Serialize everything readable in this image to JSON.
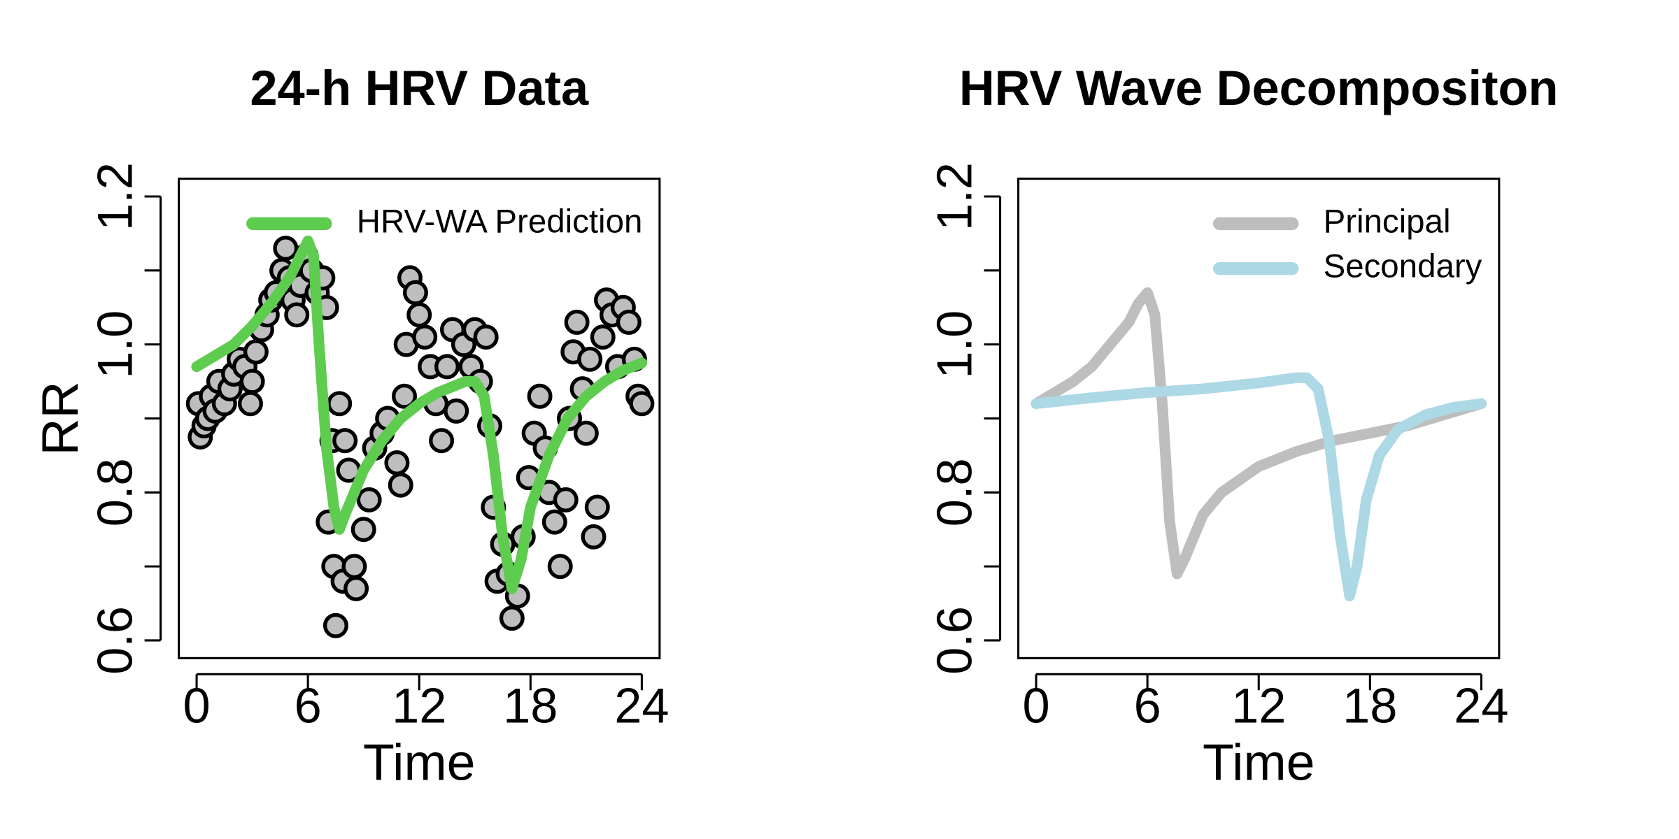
{
  "chart_data": [
    {
      "type": "scatter",
      "title": "24-h HRV Data",
      "xlabel": "Time",
      "ylabel": "RR",
      "xlim": [
        -0.96,
        24.96
      ],
      "ylim": [
        0.576,
        1.224
      ],
      "xticks": [
        0,
        6,
        12,
        18,
        24
      ],
      "yticks": [
        0.6,
        {
          "value": 0.7,
          "label": null
        },
        0.8,
        {
          "value": 0.9,
          "label": null
        },
        {
          "value": 1,
          "label": "1.0"
        },
        {
          "value": 1.1,
          "label": null
        },
        1.2
      ],
      "legend": "topright",
      "points": {
        "color": "#bebebe",
        "x": [
          0.1,
          0.2,
          0.4,
          0.6,
          0.8,
          1.0,
          1.2,
          1.5,
          1.8,
          2.0,
          2.3,
          2.6,
          2.9,
          3.0,
          3.2,
          3.5,
          3.8,
          4.0,
          4.3,
          4.6,
          4.8,
          5.0,
          5.2,
          5.4,
          5.6,
          5.9,
          6.2,
          6.5,
          6.8,
          7.0,
          7.1,
          7.3,
          7.4,
          7.5,
          7.7,
          7.9,
          8.0,
          8.2,
          8.5,
          8.6,
          9.0,
          9.3,
          9.6,
          10.0,
          10.3,
          10.8,
          11.0,
          11.2,
          11.3,
          11.5,
          11.8,
          12.0,
          12.3,
          12.6,
          12.9,
          13.2,
          13.5,
          13.8,
          14.0,
          14.4,
          14.8,
          15.0,
          15.3,
          15.6,
          15.8,
          16.0,
          16.2,
          16.5,
          16.8,
          17.0,
          17.3,
          17.6,
          17.9,
          18.2,
          18.5,
          18.8,
          19.0,
          19.3,
          19.6,
          19.9,
          20.1,
          20.3,
          20.5,
          20.8,
          21.0,
          21.2,
          21.4,
          21.6,
          21.9,
          22.1,
          22.4,
          22.7,
          23.0,
          23.3,
          23.6,
          23.8,
          24.0
        ],
        "values": [
          0.92,
          0.875,
          0.89,
          0.9,
          0.93,
          0.91,
          0.95,
          0.92,
          0.94,
          0.96,
          0.98,
          0.97,
          0.92,
          0.95,
          0.99,
          1.02,
          1.04,
          1.06,
          1.07,
          1.1,
          1.13,
          1.09,
          1.06,
          1.04,
          1.08,
          1.12,
          1.1,
          1.07,
          1.09,
          1.05,
          0.76,
          0.87,
          0.7,
          0.62,
          0.92,
          0.68,
          0.87,
          0.83,
          0.7,
          0.67,
          0.75,
          0.79,
          0.86,
          0.88,
          0.9,
          0.84,
          0.81,
          0.93,
          1.0,
          1.09,
          1.07,
          1.04,
          1.01,
          0.97,
          0.92,
          0.87,
          0.97,
          1.02,
          0.91,
          1.0,
          0.97,
          1.02,
          0.95,
          1.01,
          0.89,
          0.78,
          0.68,
          0.73,
          0.69,
          0.63,
          0.66,
          0.74,
          0.82,
          0.88,
          0.93,
          0.86,
          0.8,
          0.76,
          0.7,
          0.79,
          0.9,
          0.99,
          1.03,
          0.94,
          0.88,
          0.98,
          0.74,
          0.78,
          1.01,
          1.06,
          1.04,
          0.97,
          1.05,
          1.03,
          0.98,
          0.93,
          0.92
        ]
      },
      "series": [
        {
          "name": "HRV-WA Prediction",
          "color": "#5ecc4e",
          "x": [
            0,
            1,
            2,
            3,
            4,
            5,
            5.5,
            6,
            6.3,
            6.6,
            7,
            7.4,
            7.7,
            8,
            9,
            10,
            11,
            12,
            13,
            14,
            14.5,
            15,
            15.5,
            16,
            16.5,
            17,
            17.5,
            18,
            19,
            20,
            21,
            22,
            23,
            24
          ],
          "values": [
            0.97,
            0.985,
            1.0,
            1.025,
            1.055,
            1.09,
            1.115,
            1.14,
            1.12,
            1.0,
            0.86,
            0.78,
            0.75,
            0.77,
            0.83,
            0.87,
            0.9,
            0.92,
            0.935,
            0.945,
            0.95,
            0.95,
            0.93,
            0.85,
            0.74,
            0.67,
            0.71,
            0.78,
            0.85,
            0.9,
            0.93,
            0.95,
            0.965,
            0.975
          ]
        }
      ]
    },
    {
      "type": "line",
      "title": "HRV Wave Decompositon",
      "xlabel": "Time",
      "ylabel": "RR",
      "xlim": [
        -0.96,
        24.96
      ],
      "ylim": [
        0.576,
        1.224
      ],
      "xticks": [
        0,
        6,
        12,
        18,
        24
      ],
      "yticks": [
        0.6,
        {
          "value": 0.7,
          "label": null
        },
        0.8,
        {
          "value": 0.9,
          "label": null
        },
        {
          "value": 1,
          "label": "1.0"
        },
        {
          "value": 1.1,
          "label": null
        },
        1.2
      ],
      "legend": "topright",
      "series": [
        {
          "name": "Principal",
          "color": "#bebebe",
          "x": [
            0,
            1,
            2,
            3,
            4,
            5,
            5.5,
            6,
            6.4,
            6.8,
            7.2,
            7.6,
            8,
            9,
            10,
            12,
            14,
            16,
            18,
            20,
            22,
            24
          ],
          "values": [
            0.92,
            0.935,
            0.95,
            0.97,
            1.0,
            1.03,
            1.055,
            1.07,
            1.04,
            0.92,
            0.76,
            0.69,
            0.71,
            0.77,
            0.8,
            0.835,
            0.855,
            0.87,
            0.88,
            0.89,
            0.905,
            0.92
          ]
        },
        {
          "name": "Secondary",
          "color": "#add8e6",
          "x": [
            0,
            3,
            6,
            9,
            12,
            14,
            14.6,
            15.2,
            15.8,
            16.4,
            16.9,
            17.3,
            17.8,
            18.5,
            19.5,
            21,
            22.5,
            24
          ],
          "values": [
            0.92,
            0.928,
            0.935,
            0.94,
            0.948,
            0.955,
            0.955,
            0.94,
            0.87,
            0.74,
            0.66,
            0.7,
            0.79,
            0.85,
            0.885,
            0.905,
            0.915,
            0.92
          ]
        }
      ]
    }
  ]
}
